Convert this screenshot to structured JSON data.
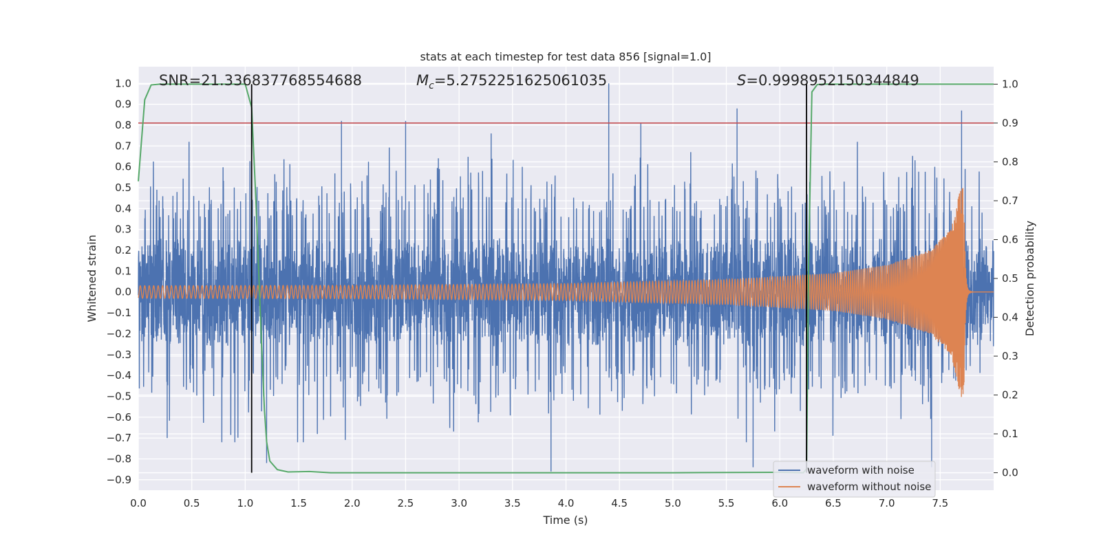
{
  "chart_data": {
    "type": "line",
    "title": "stats at each timestep for test data 856 [signal=1.0]",
    "xlabel": "Time (s)",
    "ylabel_left": "Whitened strain",
    "ylabel_right": "Detection probability",
    "xlim": [
      0.0,
      8.0
    ],
    "ylim_left": [
      -0.95,
      1.08
    ],
    "ylim_right": [
      -0.045,
      1.045
    ],
    "x_ticks": [
      "0.0",
      "0.5",
      "1.0",
      "1.5",
      "2.0",
      "2.5",
      "3.0",
      "3.5",
      "4.0",
      "4.5",
      "5.0",
      "5.5",
      "6.0",
      "6.5",
      "7.0",
      "7.5"
    ],
    "y_ticks_left": [
      "1.0",
      "0.9",
      "0.8",
      "0.7",
      "0.6",
      "0.5",
      "0.4",
      "0.3",
      "0.2",
      "0.1",
      "0.0",
      "-0.1",
      "-0.2",
      "-0.3",
      "-0.4",
      "-0.5",
      "-0.6",
      "-0.7",
      "-0.8",
      "-0.9"
    ],
    "y_ticks_right": [
      "1.0",
      "0.9",
      "0.8",
      "0.7",
      "0.6",
      "0.5",
      "0.4",
      "0.3",
      "0.2",
      "0.1",
      "0.0"
    ],
    "annotations": {
      "snr": "SNR=21.336837768554688",
      "mc_symbol": "M",
      "mc_sub": "c",
      "mc_value": "=5.2752251625061035",
      "s_symbol": "S",
      "s_value": "=0.9998952150344849"
    },
    "threshold": {
      "axis": "right",
      "value": 0.9
    },
    "vertical_markers": [
      1.06,
      6.25
    ],
    "series": [
      {
        "name": "waveform with noise",
        "axis": "left",
        "color": "#4c72b0",
        "description_values": "Dense noisy strain; core band approx ±0.25, spikes",
        "spikes": [
          {
            "x": 1.9,
            "y": 0.82
          },
          {
            "x": 2.5,
            "y": 0.82
          },
          {
            "x": 3.3,
            "y": 0.76
          },
          {
            "x": 4.4,
            "y": 1.0
          },
          {
            "x": 4.7,
            "y": 0.81
          },
          {
            "x": 5.6,
            "y": 0.88
          },
          {
            "x": 7.7,
            "y": 0.87
          },
          {
            "x": 3.86,
            "y": -0.86
          },
          {
            "x": 5.75,
            "y": -0.84
          },
          {
            "x": 7.42,
            "y": -0.84
          },
          {
            "x": 0.27,
            "y": -0.7
          },
          {
            "x": 1.2,
            "y": -0.82
          }
        ]
      },
      {
        "name": "waveform without noise",
        "axis": "left",
        "color": "#dd8452",
        "description_values": "Chirp: amplitude 0.03 at t=0 growing to 0.56 at merger t=7.72, then ringdown to 0",
        "amplitude_points": [
          [
            0.0,
            0.03
          ],
          [
            2.0,
            0.032
          ],
          [
            4.0,
            0.04
          ],
          [
            5.5,
            0.06
          ],
          [
            6.5,
            0.09
          ],
          [
            7.0,
            0.13
          ],
          [
            7.4,
            0.2
          ],
          [
            7.6,
            0.3
          ],
          [
            7.72,
            0.56
          ]
        ],
        "merger_time": 7.72
      },
      {
        "name": "detection probability",
        "axis": "right",
        "color": "#55a868",
        "x": [
          0.0,
          0.06,
          0.12,
          0.2,
          0.5,
          0.8,
          1.0,
          1.06,
          1.1,
          1.15,
          1.18,
          1.2,
          1.23,
          1.3,
          1.4,
          1.6,
          1.8,
          2.5,
          4.0,
          5.0,
          6.0,
          6.22,
          6.25,
          6.27,
          6.3,
          6.35,
          6.4,
          7.0,
          8.0
        ],
        "y": [
          0.75,
          0.96,
          0.998,
          1.0,
          1.0,
          1.0,
          1.0,
          0.94,
          0.7,
          0.35,
          0.16,
          0.08,
          0.03,
          0.008,
          0.002,
          0.003,
          0.0,
          0.0,
          0.0,
          0.0,
          0.001,
          0.0,
          0.01,
          0.55,
          0.98,
          0.999,
          1.0,
          1.0,
          1.0
        ]
      }
    ],
    "legend": {
      "placement": "lower-right",
      "entries": [
        {
          "label": "waveform with noise",
          "color": "#4c72b0"
        },
        {
          "label": "waveform without noise",
          "color": "#dd8452"
        }
      ]
    }
  }
}
